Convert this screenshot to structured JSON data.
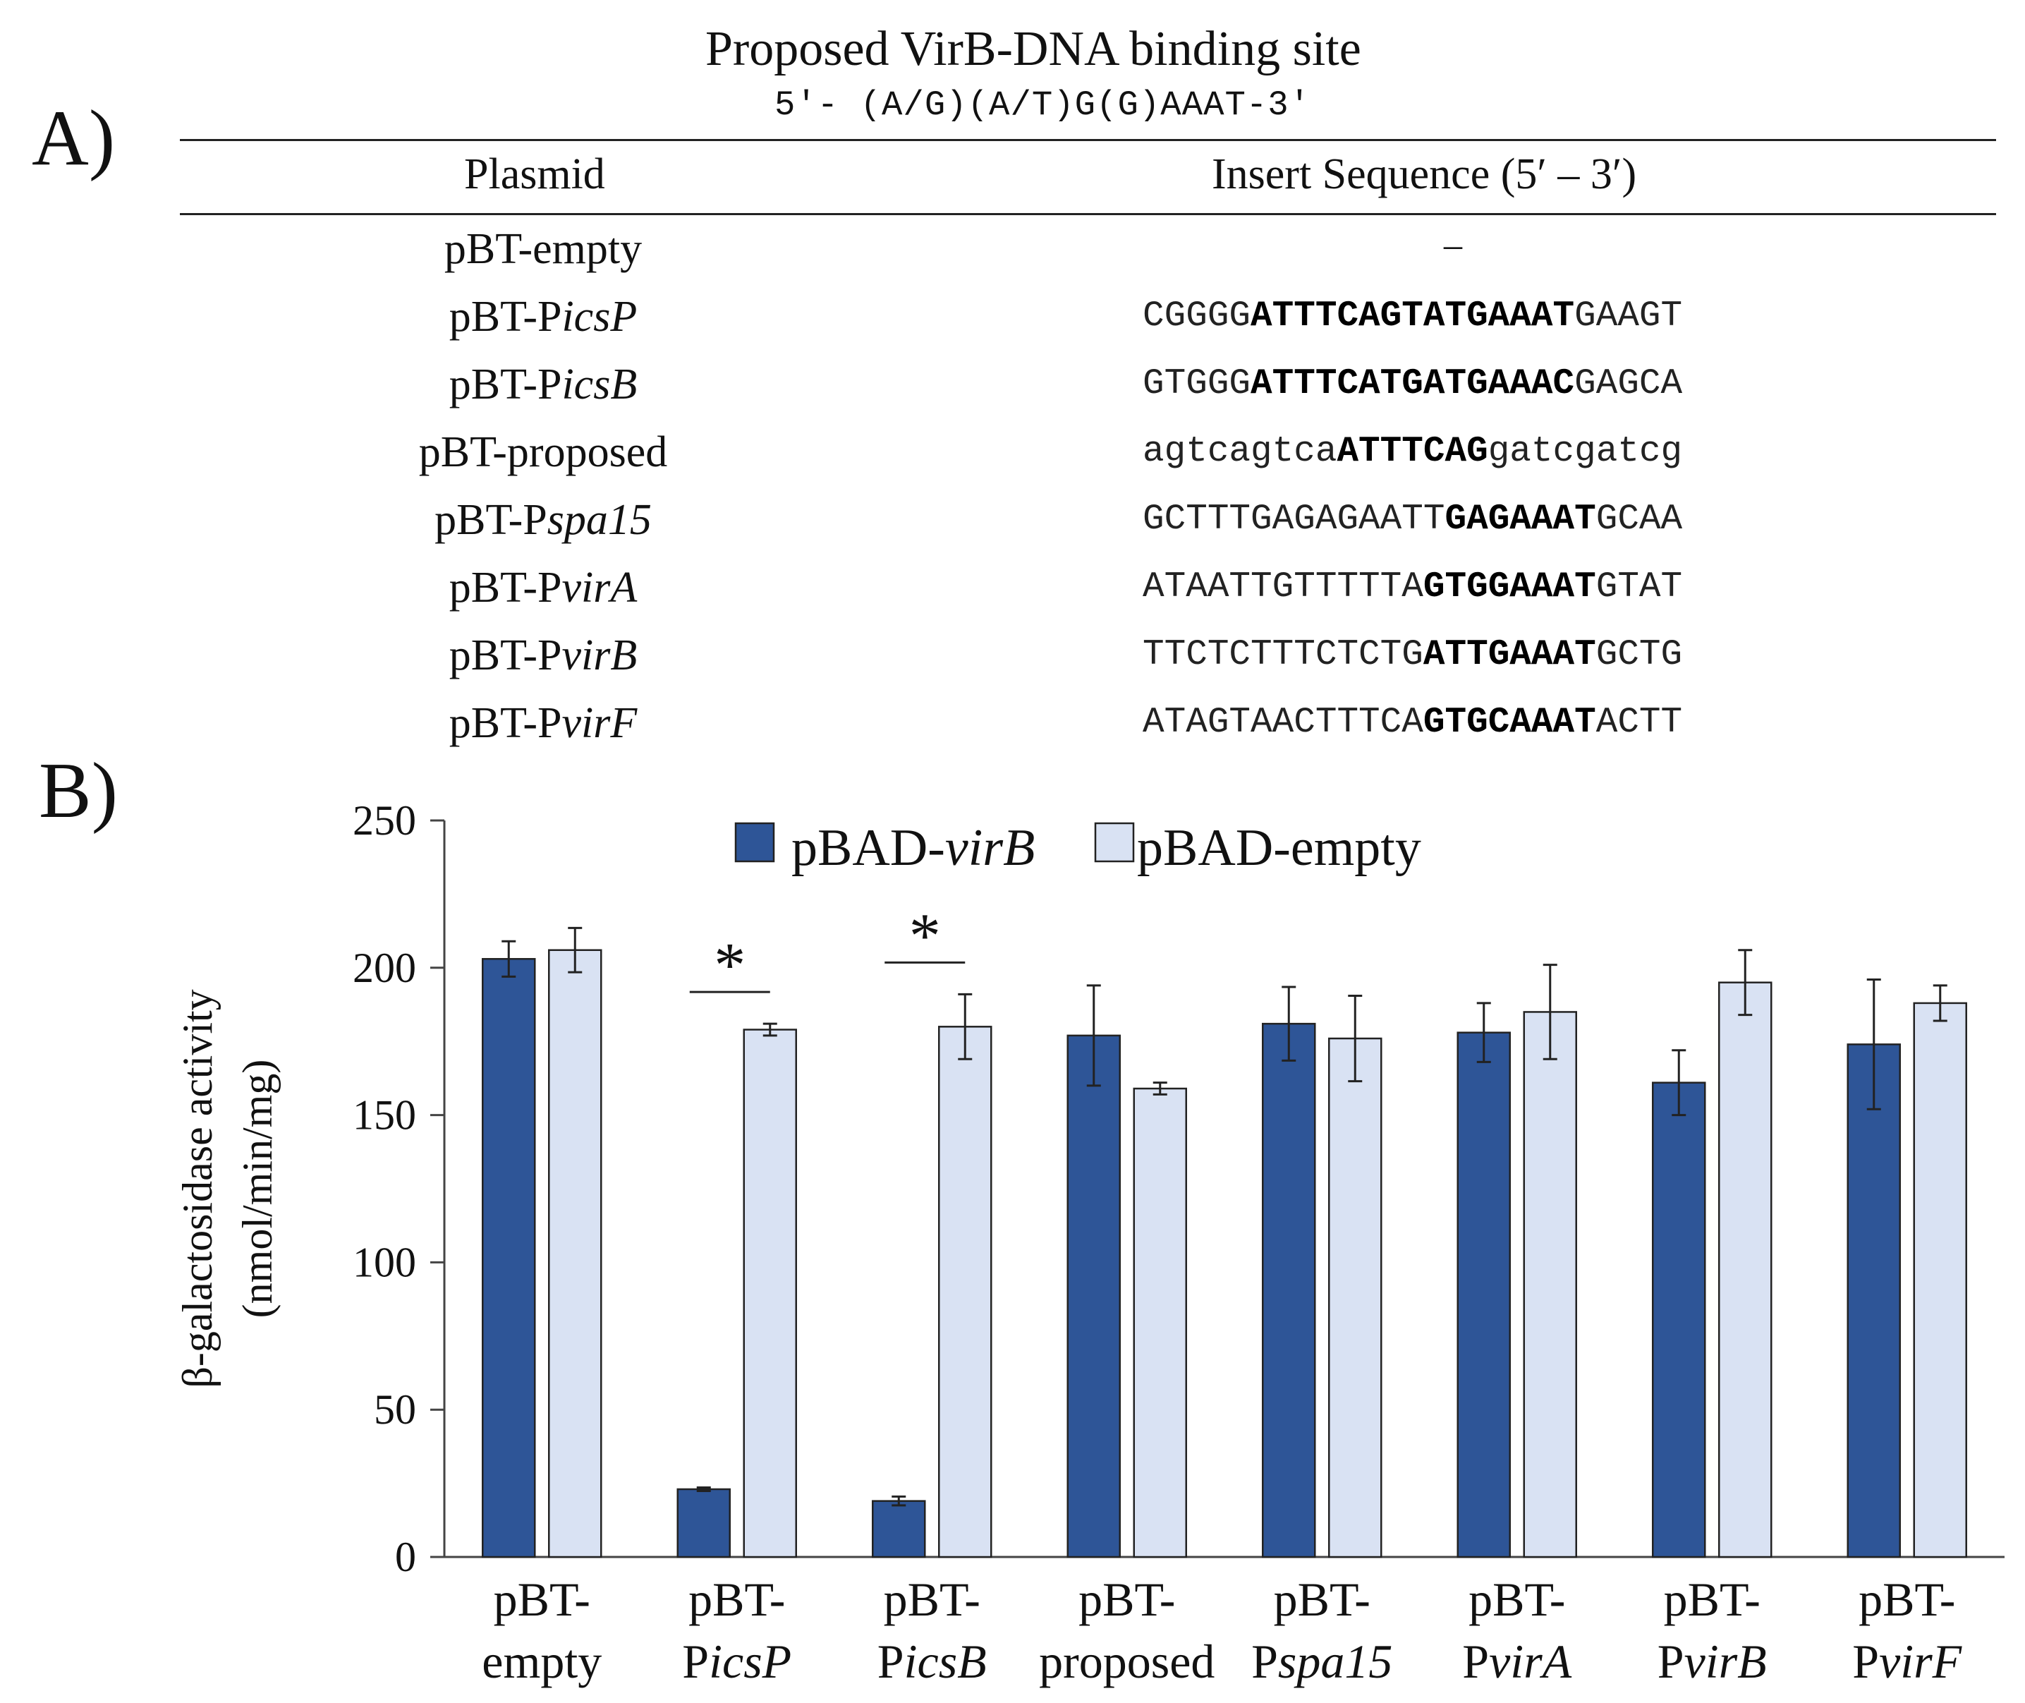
{
  "panelA": {
    "label": "A)",
    "title": "Proposed  VirB-DNA binding site",
    "motif": "5′-  (A/G)(A/T)G(G)AAAT-3′",
    "col_plasmid": "Plasmid",
    "col_sequence": "Insert Sequence (5′ – 3′)",
    "rows": [
      {
        "plasmid_pre": "pBT-empty",
        "plasmid_it": "",
        "seq_pre": "",
        "seq_bold": "",
        "seq_post": "",
        "placeholder": "–"
      },
      {
        "plasmid_pre": "pBT-P",
        "plasmid_it": "icsP",
        "seq_pre": "CGGGG",
        "seq_bold": "ATTTCAGTATGAAAT",
        "seq_post": "GAAGT",
        "placeholder": ""
      },
      {
        "plasmid_pre": "pBT-P",
        "plasmid_it": "icsB",
        "seq_pre": "GTGGG",
        "seq_bold": "ATTTCATGATGAAAC",
        "seq_post": "GAGCA",
        "placeholder": ""
      },
      {
        "plasmid_pre": "pBT-proposed",
        "plasmid_it": "",
        "seq_pre": "agtcagtca",
        "seq_bold": "ATTTCAG",
        "seq_post": "gatcgatcg",
        "placeholder": ""
      },
      {
        "plasmid_pre": "pBT-P",
        "plasmid_it": "spa15",
        "seq_pre": "GCTTTGAGAGAATT",
        "seq_bold": "GAGAAAT",
        "seq_post": "GCAA",
        "placeholder": ""
      },
      {
        "plasmid_pre": "pBT-P",
        "plasmid_it": "virA",
        "seq_pre": "ATAATTGTTTTTA",
        "seq_bold": "GTGGAAAT",
        "seq_post": "GTAT",
        "placeholder": ""
      },
      {
        "plasmid_pre": "pBT-P",
        "plasmid_it": "virB",
        "seq_pre": "TTCTCTTTCTCTG",
        "seq_bold": "ATTGAAAT",
        "seq_post": "GCTG",
        "placeholder": ""
      },
      {
        "plasmid_pre": "pBT-P",
        "plasmid_it": "virF",
        "seq_pre": "ATAGTAACTTTCA",
        "seq_bold": "GTGCAAAT",
        "seq_post": "ACTT",
        "placeholder": ""
      }
    ]
  },
  "panelB": {
    "label": "B)"
  },
  "chart_data": {
    "type": "bar",
    "ylabel_line1": "β-galactosidase  activity",
    "ylabel_line2": "(nmol/min/mg)",
    "ylim": [
      0,
      250
    ],
    "yticks": [
      "0",
      "50",
      "100",
      "150",
      "200",
      "250"
    ],
    "categories": [
      {
        "line1": "pBT-",
        "line2_pre": "empty",
        "line2_it": ""
      },
      {
        "line1": "pBT-",
        "line2_pre": "P",
        "line2_it": "icsP"
      },
      {
        "line1": "pBT-",
        "line2_pre": "P",
        "line2_it": "icsB"
      },
      {
        "line1": "pBT-",
        "line2_pre": "proposed",
        "line2_it": ""
      },
      {
        "line1": "pBT-",
        "line2_pre": "P",
        "line2_it": "spa15"
      },
      {
        "line1": "pBT-",
        "line2_pre": "P",
        "line2_it": "virA"
      },
      {
        "line1": "pBT-",
        "line2_pre": "P",
        "line2_it": "virB"
      },
      {
        "line1": "pBT-",
        "line2_pre": "P",
        "line2_it": "virF"
      }
    ],
    "series": [
      {
        "name_pre": "pBAD-",
        "name_it": "virB",
        "color": "#2e5597",
        "values": [
          203,
          23,
          19,
          177,
          181,
          178,
          161,
          174
        ],
        "errors": [
          6,
          0.6,
          1.5,
          17,
          12.5,
          10,
          11,
          22
        ]
      },
      {
        "name_pre": "pBAD-empty",
        "name_it": "",
        "color": "#d9e2f3",
        "values": [
          206,
          179,
          180,
          159,
          176,
          185,
          195,
          188
        ],
        "errors": [
          7.5,
          2,
          11,
          2,
          14.5,
          16,
          11,
          6
        ]
      }
    ],
    "significance": [
      {
        "category": 1,
        "label": "*"
      },
      {
        "category": 2,
        "label": "*"
      }
    ],
    "legend": "top-center"
  }
}
